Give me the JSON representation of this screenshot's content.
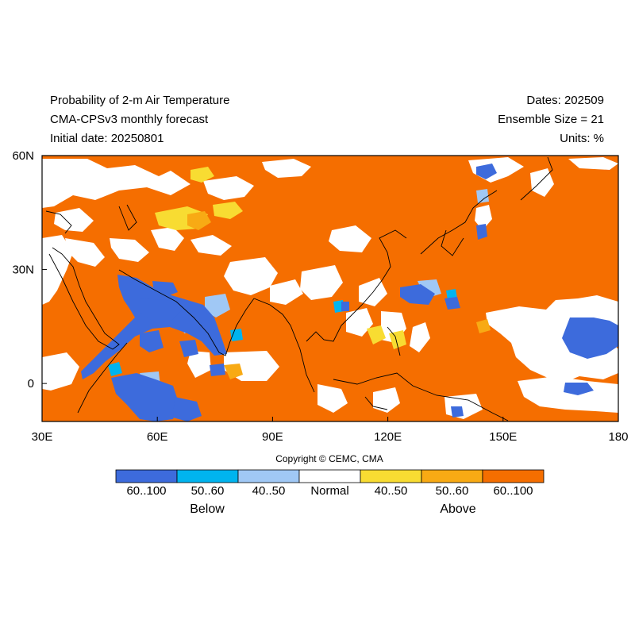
{
  "header": {
    "left_lines": [
      "Probability of 2-m Air Temperature",
      "CMA-CPSv3 monthly forecast",
      "Initial date: 20250801"
    ],
    "right_lines": [
      "Dates: 202509",
      "Ensemble Size = 21",
      "Units: %"
    ]
  },
  "map": {
    "lon_range": [
      30,
      180
    ],
    "lat_range": [
      -10,
      60
    ],
    "x_ticks": [
      "30E",
      "60E",
      "90E",
      "120E",
      "150E",
      "180"
    ],
    "y_ticks": [
      "60N",
      "30N",
      "0"
    ],
    "background_category": "above_60_100"
  },
  "legend": {
    "copyright": "Copyright © CEMC, CMA",
    "bins": [
      {
        "label": "60..100",
        "color": "#3d6bdc"
      },
      {
        "label": "50..60",
        "color": "#00b4ef"
      },
      {
        "label": "40..50",
        "color": "#a0c8f5"
      },
      {
        "label": "Normal",
        "color": "#ffffff"
      },
      {
        "label": "40..50",
        "color": "#f8dc32"
      },
      {
        "label": "50..60",
        "color": "#f8aa14"
      },
      {
        "label": "60..100",
        "color": "#f56e00"
      }
    ],
    "groups": {
      "below": "Below",
      "above": "Above"
    }
  }
}
